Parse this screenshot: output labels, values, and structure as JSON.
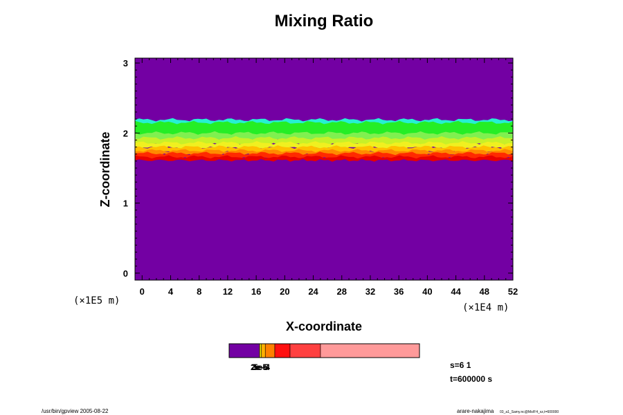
{
  "chart_data": {
    "type": "heatmap",
    "title": "Mixing Ratio",
    "xlabel": "X-coordinate",
    "ylabel": "Z-coordinate",
    "x_unit": "(×1E4 m)",
    "y_unit": "(×1E5 m)",
    "xlim": [
      -1,
      52
    ],
    "ylim": [
      -0.1,
      3.07
    ],
    "x_ticks": [
      "0",
      "4",
      "8",
      "12",
      "16",
      "20",
      "24",
      "28",
      "32",
      "36",
      "40",
      "44",
      "48",
      "52"
    ],
    "y_ticks": [
      "0",
      "1",
      "2",
      "3"
    ],
    "background_color": "#7300a3",
    "layers": [
      {
        "name": "cyan-top",
        "color": "#26f0d2",
        "z_bottom": 2.05,
        "z_top": 2.19
      },
      {
        "name": "green",
        "color": "#25ee25",
        "z_bottom": 1.96,
        "z_top": 2.15
      },
      {
        "name": "light-green",
        "color": "#80f050",
        "z_bottom": 1.9,
        "z_top": 2.0
      },
      {
        "name": "yellow-green",
        "color": "#c8f028",
        "z_bottom": 1.84,
        "z_top": 1.93
      },
      {
        "name": "yellow",
        "color": "#f0f020",
        "z_bottom": 1.79,
        "z_top": 1.86
      },
      {
        "name": "amber",
        "color": "#ffc000",
        "z_bottom": 1.73,
        "z_top": 1.8
      },
      {
        "name": "orange",
        "color": "#ff8a00",
        "z_bottom": 1.69,
        "z_top": 1.75
      },
      {
        "name": "red",
        "color": "#ff2a00",
        "z_bottom": 1.64,
        "z_top": 1.71
      },
      {
        "name": "deep-red",
        "color": "#e80000",
        "z_bottom": 1.61,
        "z_top": 1.66
      }
    ],
    "colorbar": {
      "segments": [
        {
          "color": "#7300a3",
          "width": 0.16
        },
        {
          "color": "#f0e000",
          "width": 0.01
        },
        {
          "color": "#ffb000",
          "width": 0.02
        },
        {
          "color": "#ff8000",
          "width": 0.05
        },
        {
          "color": "#ff1010",
          "width": 0.08
        },
        {
          "color": "#ff4040",
          "width": 0.16
        },
        {
          "color": "#ff9a9a",
          "width": 0.52
        }
      ],
      "labels": [
        "2e-5",
        "3e-5",
        "5e-4"
      ]
    },
    "info": {
      "s": "s=6 1",
      "t": "t=600000 s"
    },
    "footer_left": "/usr/bin/gpview 2005-08-22",
    "footer_right": "arare-nakajima",
    "footer_right_small": "03_a1_Samy.nc@Mo/F4_xz,t=600000"
  }
}
